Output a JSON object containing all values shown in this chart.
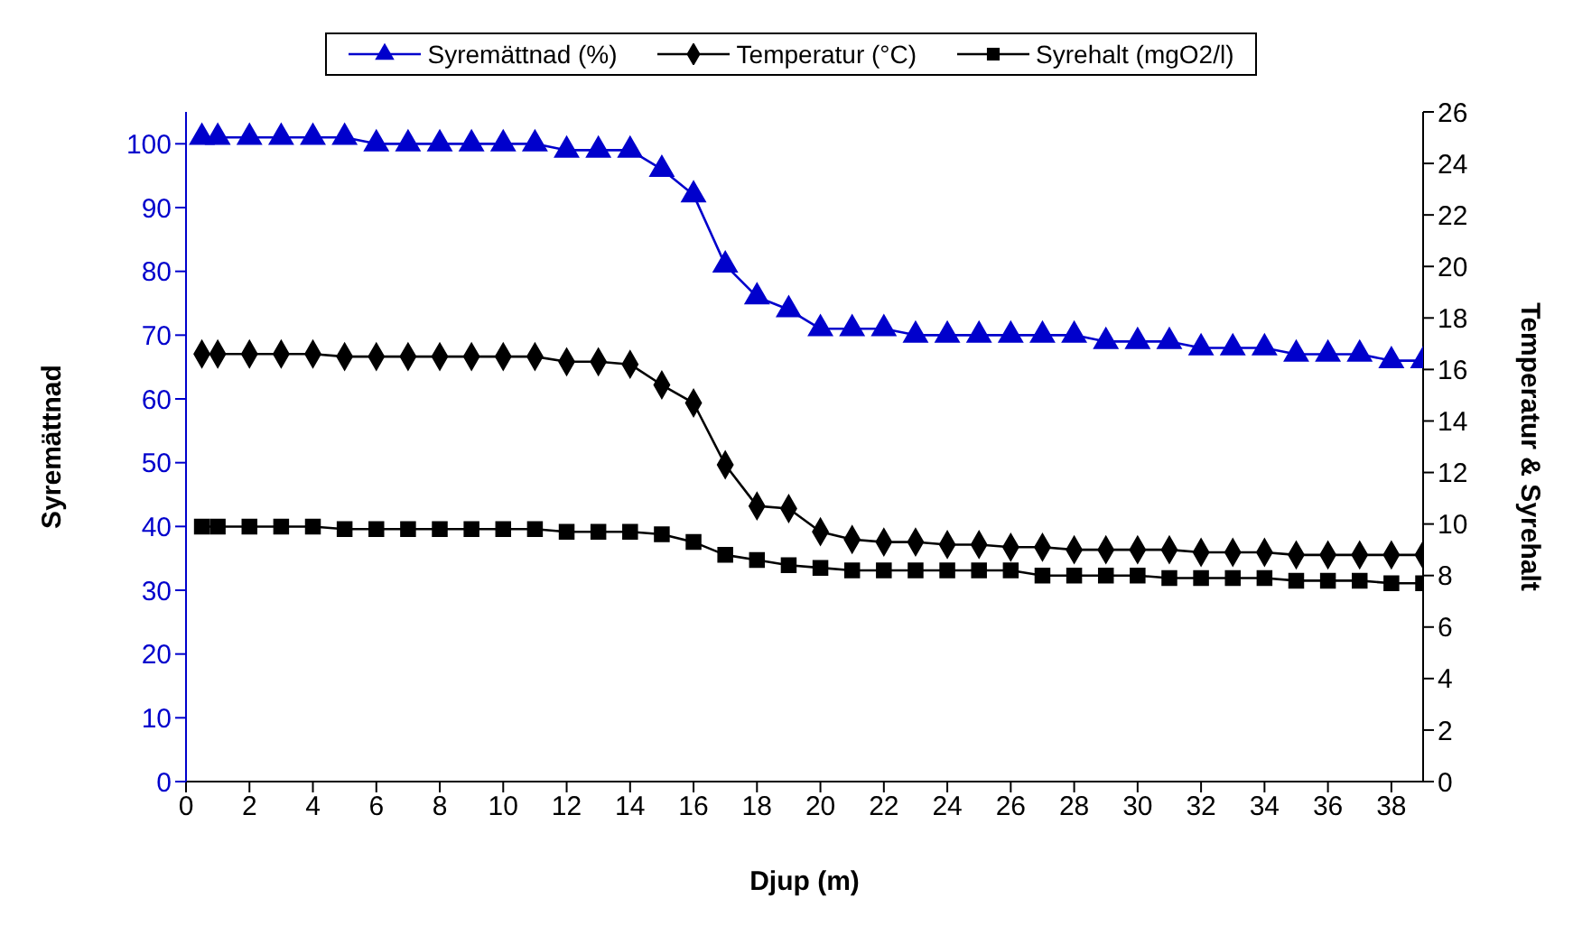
{
  "chart_data": {
    "type": "line",
    "xlabel": "Djup (m)",
    "ylabel": "Syremättnad",
    "y2label": "Temperatur & Syrehalt",
    "x": [
      0.5,
      1,
      2,
      3,
      4,
      5,
      6,
      7,
      8,
      9,
      10,
      11,
      12,
      13,
      14,
      15,
      16,
      17,
      18,
      19,
      20,
      21,
      22,
      23,
      24,
      25,
      26,
      27,
      28,
      29,
      30,
      31,
      32,
      33,
      34,
      35,
      36,
      37,
      38,
      39
    ],
    "series": [
      {
        "name": "Syremättnad (%)",
        "color": "#0000cc",
        "marker": "triangle",
        "values": [
          101,
          101,
          101,
          101,
          101,
          101,
          100,
          100,
          100,
          100,
          100,
          100,
          99,
          99,
          99,
          96,
          92,
          81,
          76,
          74,
          71,
          71,
          71,
          70,
          70,
          70,
          70,
          70,
          70,
          69,
          69,
          69,
          68,
          68,
          68,
          67,
          67,
          67,
          66,
          66
        ]
      },
      {
        "name": "Temperatur (°C)",
        "color": "#000000",
        "marker": "diamond",
        "axis": "y2",
        "values": [
          16.6,
          16.6,
          16.6,
          16.6,
          16.6,
          16.5,
          16.5,
          16.5,
          16.5,
          16.5,
          16.5,
          16.5,
          16.3,
          16.3,
          16.2,
          15.4,
          14.7,
          12.3,
          10.7,
          10.6,
          9.7,
          9.4,
          9.3,
          9.3,
          9.2,
          9.2,
          9.1,
          9.1,
          9.0,
          9.0,
          9.0,
          9.0,
          8.9,
          8.9,
          8.9,
          8.8,
          8.8,
          8.8,
          8.8,
          8.8
        ]
      },
      {
        "name": "Syrehalt (mgO2/l)",
        "color": "#000000",
        "marker": "square",
        "axis": "y2",
        "values": [
          9.9,
          9.9,
          9.9,
          9.9,
          9.9,
          9.8,
          9.8,
          9.8,
          9.8,
          9.8,
          9.8,
          9.8,
          9.7,
          9.7,
          9.7,
          9.6,
          9.3,
          8.8,
          8.6,
          8.4,
          8.3,
          8.2,
          8.2,
          8.2,
          8.2,
          8.2,
          8.2,
          8.0,
          8.0,
          8.0,
          8.0,
          7.9,
          7.9,
          7.9,
          7.9,
          7.8,
          7.8,
          7.8,
          7.7,
          7.7
        ]
      }
    ],
    "xlim": [
      0,
      39
    ],
    "xticks": [
      0,
      2,
      4,
      6,
      8,
      10,
      12,
      14,
      16,
      18,
      20,
      22,
      24,
      26,
      28,
      30,
      32,
      34,
      36,
      38
    ],
    "ylim": [
      0,
      105
    ],
    "yticks": [
      0,
      10,
      20,
      30,
      40,
      50,
      60,
      70,
      80,
      90,
      100
    ],
    "y2lim": [
      0,
      26
    ],
    "y2ticks": [
      0,
      2,
      4,
      6,
      8,
      10,
      12,
      14,
      16,
      18,
      20,
      22,
      24,
      26
    ],
    "legend": "top"
  }
}
